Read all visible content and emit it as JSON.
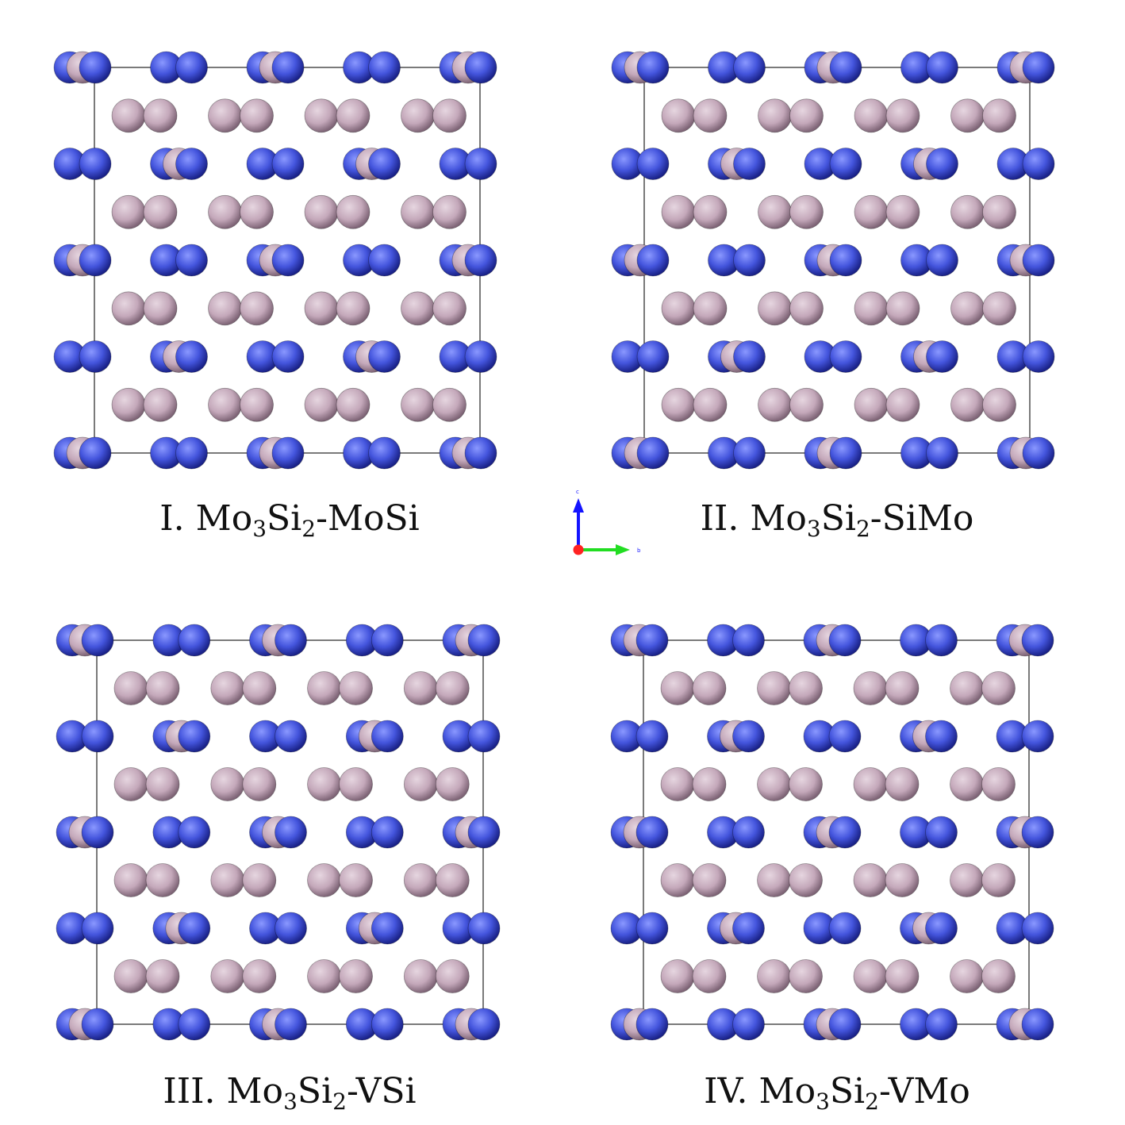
{
  "figure": {
    "panels": [
      {
        "id": "I",
        "caption": {
          "prefix": "I. Mo",
          "sub1": "3",
          "mid": "Si",
          "sub2": "2",
          "suffix": "-MoSi"
        }
      },
      {
        "id": "II",
        "caption": {
          "prefix": "II. Mo",
          "sub1": "3",
          "mid": "Si",
          "sub2": "2",
          "suffix": "-SiMo"
        }
      },
      {
        "id": "III",
        "caption": {
          "prefix": "III. Mo",
          "sub1": "3",
          "mid": "Si",
          "sub2": "2",
          "suffix": "-VSi"
        }
      },
      {
        "id": "IV",
        "caption": {
          "prefix": "IV. Mo",
          "sub1": "3",
          "mid": "Si",
          "sub2": "2",
          "suffix": "-VMo"
        }
      }
    ],
    "axes": {
      "c_label": "c",
      "b_label": "b"
    },
    "colors": {
      "si_atom": "#4455dd",
      "si_atom_dark": "#1a2288",
      "mo_atom": "#c4a8ba",
      "mo_atom_dark": "#7f6577",
      "bond": "#4c5ed0",
      "cell_line": "#222222",
      "axis_c": "#1414ff",
      "axis_b": "#22dd22",
      "axis_a": "#ff2222"
    }
  }
}
